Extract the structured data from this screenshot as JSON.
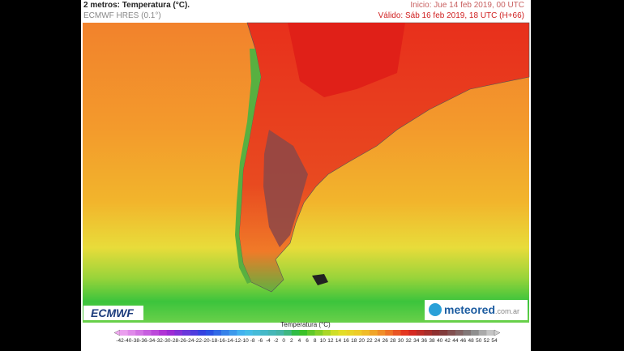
{
  "header": {
    "title": "2 metros: Temperatura (°C).",
    "model": "ECMWF HRES (0.1°)",
    "init": "Inicio: Jue 14 feb 2019, 00 UTC",
    "valid": "Válido: Sáb 16 feb 2019, 18 UTC (H+66)"
  },
  "logos": {
    "left": "ECMWF",
    "right": "meteored",
    "right_suffix": ".com.ar"
  },
  "legend": {
    "title": "Temperatura (°C)",
    "ticks": [
      -42,
      -40,
      -38,
      -36,
      -34,
      -32,
      -30,
      -28,
      -26,
      -24,
      -22,
      -20,
      -18,
      -16,
      -14,
      -12,
      -10,
      -8,
      -6,
      -4,
      -2,
      0,
      2,
      4,
      6,
      8,
      10,
      12,
      14,
      16,
      18,
      20,
      22,
      24,
      26,
      28,
      30,
      32,
      34,
      36,
      38,
      40,
      42,
      44,
      46,
      48,
      50,
      52,
      54
    ]
  }
}
